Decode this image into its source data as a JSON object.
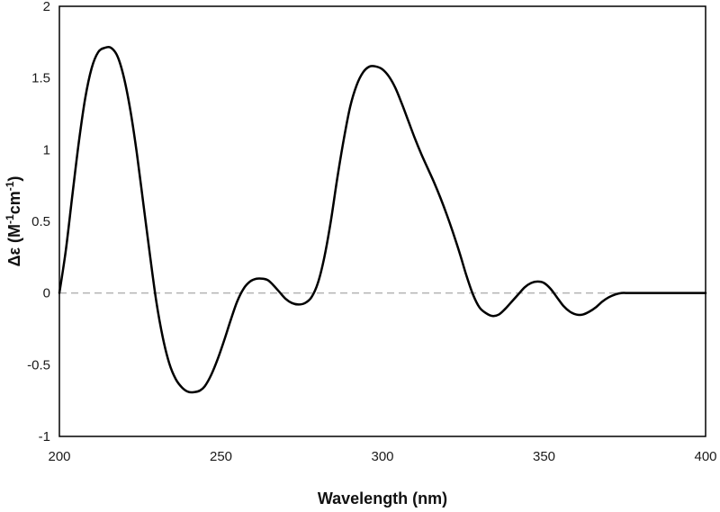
{
  "chart_data": {
    "type": "line",
    "title": "",
    "xlabel": "Wavelength (nm)",
    "ylabel_parts": [
      "Δε (M",
      "-1",
      "cm",
      "-1",
      ")"
    ],
    "xlim": [
      200,
      400
    ],
    "ylim": [
      -1,
      2
    ],
    "xticks": [
      200,
      250,
      300,
      350,
      400
    ],
    "yticks": [
      -1,
      -0.5,
      0,
      0.5,
      1,
      1.5,
      2
    ],
    "xtick_labels": [
      "200",
      "250",
      "300",
      "350",
      "400"
    ],
    "ytick_labels": [
      "-1",
      "-0.5",
      "0",
      "0.5",
      "1",
      "1.5",
      "2"
    ],
    "grid": false,
    "legend": "none",
    "zero_line": {
      "y": 0,
      "style": "dashed",
      "color": "#b3b3b3"
    },
    "series": [
      {
        "color": "#000000",
        "x": [
          200,
          202,
          204,
          206,
          208,
          210,
          212,
          214,
          216,
          218,
          220,
          222,
          224,
          226,
          228,
          230,
          232,
          234,
          236,
          238,
          240,
          242,
          243.5,
          245,
          247,
          249,
          251,
          253,
          255,
          257,
          259,
          261,
          263,
          264.5,
          266,
          268,
          270,
          272,
          274,
          276,
          278,
          280,
          282,
          284,
          286,
          288,
          290,
          292,
          294,
          296,
          298,
          300,
          302,
          304,
          306,
          308,
          310,
          312,
          314,
          316,
          318,
          320,
          322,
          324,
          326,
          328,
          330,
          332,
          334,
          336,
          338,
          340,
          342,
          344,
          346,
          348,
          350,
          352,
          354,
          356,
          358,
          360,
          362,
          364,
          366,
          368,
          370,
          372,
          374,
          376,
          378,
          380,
          382,
          384,
          386,
          388,
          390,
          392,
          394,
          396,
          398,
          400
        ],
        "y": [
          0,
          0.3,
          0.68,
          1.05,
          1.36,
          1.57,
          1.68,
          1.71,
          1.71,
          1.65,
          1.5,
          1.27,
          0.97,
          0.62,
          0.27,
          -0.06,
          -0.31,
          -0.49,
          -0.6,
          -0.66,
          -0.69,
          -0.69,
          -0.68,
          -0.65,
          -0.57,
          -0.46,
          -0.33,
          -0.19,
          -0.06,
          0.03,
          0.08,
          0.1,
          0.1,
          0.09,
          0.06,
          0.01,
          -0.04,
          -0.07,
          -0.08,
          -0.07,
          -0.03,
          0.07,
          0.25,
          0.5,
          0.8,
          1.07,
          1.3,
          1.45,
          1.54,
          1.58,
          1.58,
          1.56,
          1.51,
          1.43,
          1.32,
          1.2,
          1.08,
          0.97,
          0.87,
          0.77,
          0.66,
          0.54,
          0.41,
          0.27,
          0.12,
          -0.01,
          -0.1,
          -0.14,
          -0.16,
          -0.15,
          -0.11,
          -0.06,
          -0.01,
          0.04,
          0.07,
          0.08,
          0.07,
          0.03,
          -0.03,
          -0.09,
          -0.13,
          -0.15,
          -0.15,
          -0.13,
          -0.1,
          -0.06,
          -0.03,
          -0.01,
          0.0,
          0.0,
          0.0,
          0.0,
          0.0,
          0.0,
          0.0,
          0.0,
          0.0,
          0.0,
          0.0,
          0.0,
          0.0,
          0.0
        ]
      }
    ]
  }
}
